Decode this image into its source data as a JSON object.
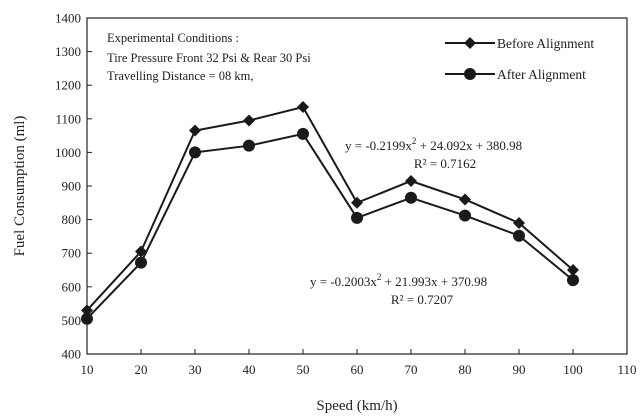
{
  "chart_data": {
    "type": "line",
    "xlabel": "Speed (km/h)",
    "ylabel": "Fuel Consumption (ml)",
    "xlim": [
      10,
      110
    ],
    "ylim": [
      400,
      1400
    ],
    "x_ticks": [
      10,
      20,
      30,
      40,
      50,
      60,
      70,
      80,
      90,
      100,
      110
    ],
    "y_ticks": [
      400,
      500,
      600,
      700,
      800,
      900,
      1000,
      1100,
      1200,
      1300,
      1400
    ],
    "x": [
      10,
      20,
      30,
      40,
      50,
      60,
      70,
      80,
      90,
      100
    ],
    "series": [
      {
        "name": "Before Alignment",
        "marker": "diamond",
        "color": "#1a1a1a",
        "values": [
          530,
          705,
          1065,
          1095,
          1135,
          850,
          915,
          860,
          790,
          650
        ]
      },
      {
        "name": "After Alignment",
        "marker": "circle",
        "color": "#1a1a1a",
        "values": [
          505,
          672,
          1000,
          1020,
          1055,
          805,
          865,
          812,
          752,
          620
        ]
      }
    ],
    "grid": false,
    "legend_position": "top-right",
    "conditions": {
      "heading": "Experimental Conditions :",
      "line1": "Tire Pressure Front 32 Psi  & Rear 30 Psi",
      "line2": "Travelling Distance = 08 km,"
    },
    "equations": [
      {
        "eq_prefix": "y = -0.2199x",
        "eq_sup": "2",
        "eq_suffix": " + 24.092x + 380.98",
        "r2": "R² = 0.7162"
      },
      {
        "eq_prefix": "y = -0.2003x",
        "eq_sup": "2",
        "eq_suffix": " + 21.993x + 370.98",
        "r2": "R² = 0.7207"
      }
    ]
  }
}
